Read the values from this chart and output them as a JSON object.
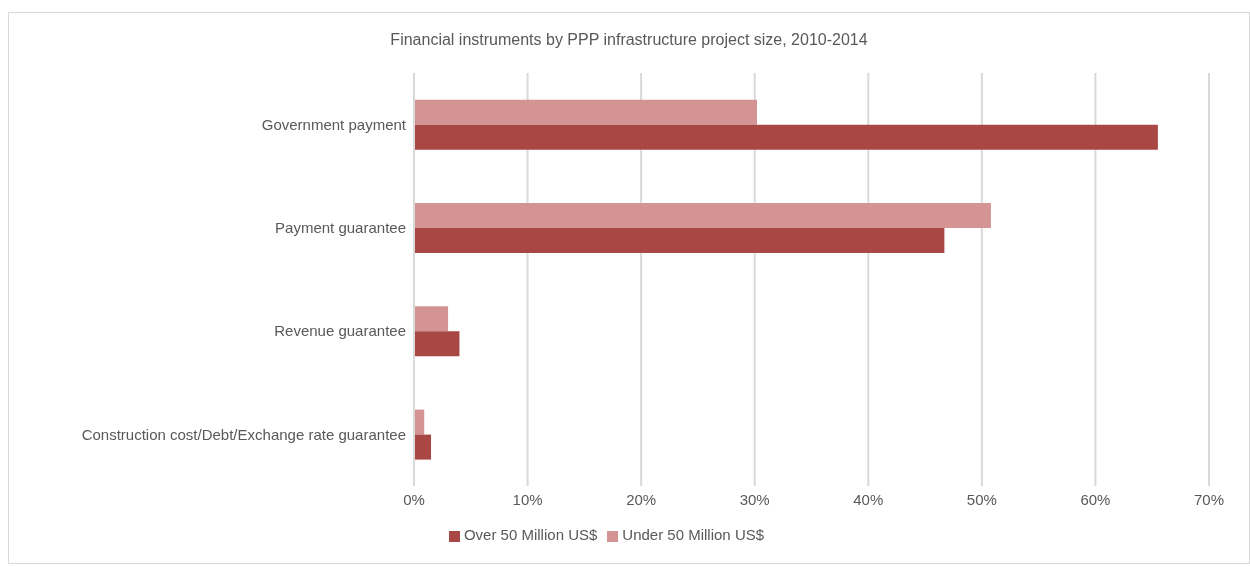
{
  "chart_data": {
    "type": "bar",
    "orientation": "horizontal",
    "title": "Financial instruments by PPP infrastructure project size, 2010-2014",
    "categories": [
      "Government payment",
      "Payment guarantee",
      "Revenue guarantee",
      "Construction cost/Debt/Exchange rate guarantee"
    ],
    "series": [
      {
        "name": "Under 50 Million US$",
        "color": "#d39493",
        "values": [
          30.2,
          50.8,
          3.0,
          0.9
        ]
      },
      {
        "name": "Over 50 Million US$",
        "color": "#a94744",
        "values": [
          65.5,
          46.7,
          4.0,
          1.5
        ]
      }
    ],
    "xlim": [
      0,
      70
    ],
    "xticks": [
      {
        "value": 0,
        "label": "0%"
      },
      {
        "value": 10,
        "label": "10%"
      },
      {
        "value": 20,
        "label": "20%"
      },
      {
        "value": 30,
        "label": "30%"
      },
      {
        "value": 40,
        "label": "40%"
      },
      {
        "value": 50,
        "label": "50%"
      },
      {
        "value": 60,
        "label": "60%"
      },
      {
        "value": 70,
        "label": "70%"
      }
    ],
    "grid": "x",
    "legend": "bottom"
  }
}
